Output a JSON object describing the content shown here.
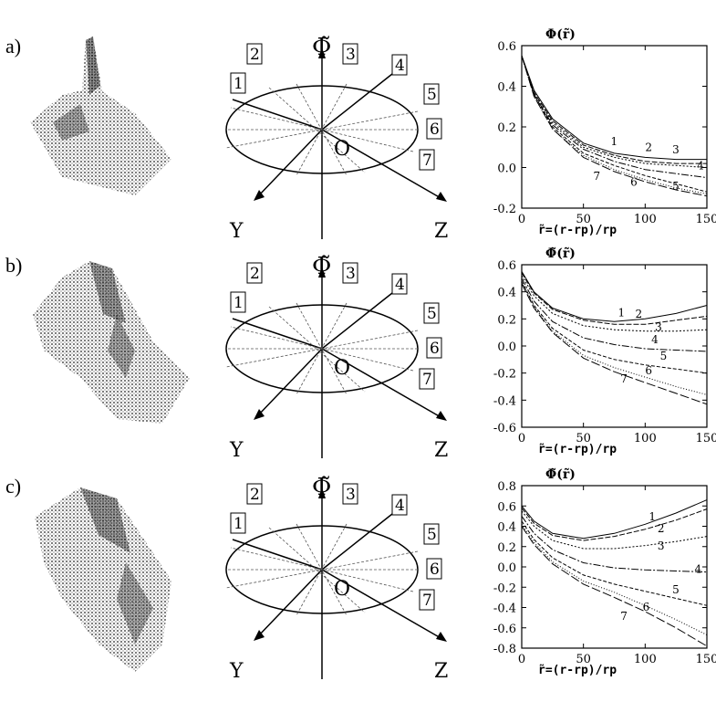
{
  "rows": [
    {
      "label": "a)",
      "diagram": {
        "phi_label": "Φ̃",
        "y_label": "Y",
        "z_label": "Z",
        "origin_label": "O",
        "rays": [
          "1",
          "2",
          "3",
          "4",
          "5",
          "6",
          "7"
        ]
      },
      "plot": {
        "ylabel": "Φ(r̃)",
        "xlabel": "r̃=(r-rp)/rp"
      }
    },
    {
      "label": "b)",
      "diagram": {
        "phi_label": "Φ̃",
        "y_label": "Y",
        "z_label": "Z",
        "origin_label": "O",
        "rays": [
          "1",
          "2",
          "3",
          "4",
          "5",
          "6",
          "7"
        ]
      },
      "plot": {
        "ylabel": "Φ̃(r̃)",
        "xlabel": "r̃=(r-rp)/rp"
      }
    },
    {
      "label": "c)",
      "diagram": {
        "phi_label": "Φ̃",
        "y_label": "Y",
        "z_label": "Z",
        "origin_label": "O",
        "rays": [
          "1",
          "2",
          "3",
          "4",
          "5",
          "6",
          "7"
        ]
      },
      "plot": {
        "ylabel": "Φ̃(r̃)",
        "xlabel": "r̃=(r-rp)/rp"
      }
    }
  ],
  "chart_data": [
    {
      "type": "line",
      "xlim": [
        0,
        150
      ],
      "ylim": [
        -0.2,
        0.6
      ],
      "xticks": [
        0,
        50,
        100,
        150
      ],
      "yticks": [
        -0.2,
        0.0,
        0.2,
        0.4,
        0.6
      ],
      "ytick_labels": [
        "-0.2",
        "0.0",
        "0.2",
        "0.4",
        "0.6"
      ],
      "xtick_labels": [
        "0",
        "50",
        "100",
        "150"
      ],
      "x": [
        0,
        10,
        25,
        50,
        75,
        100,
        125,
        150
      ],
      "series": [
        {
          "name": "1",
          "values": [
            0.55,
            0.38,
            0.24,
            0.12,
            0.07,
            0.05,
            0.04,
            0.04
          ]
        },
        {
          "name": "2",
          "values": [
            0.55,
            0.37,
            0.23,
            0.11,
            0.06,
            0.03,
            0.02,
            0.02
          ]
        },
        {
          "name": "3",
          "values": [
            0.55,
            0.37,
            0.22,
            0.1,
            0.05,
            0.02,
            0.01,
            0.0
          ]
        },
        {
          "name": "4",
          "values": [
            0.55,
            0.36,
            0.21,
            0.09,
            0.03,
            -0.01,
            -0.03,
            -0.05
          ]
        },
        {
          "name": "5",
          "values": [
            0.55,
            0.36,
            0.2,
            0.07,
            0.01,
            -0.04,
            -0.08,
            -0.12
          ]
        },
        {
          "name": "6",
          "values": [
            0.55,
            0.35,
            0.19,
            0.06,
            -0.01,
            -0.06,
            -0.1,
            -0.13
          ]
        },
        {
          "name": "7",
          "values": [
            0.55,
            0.35,
            0.19,
            0.05,
            -0.02,
            -0.07,
            -0.11,
            -0.14
          ]
        }
      ],
      "labels": [
        {
          "text": "1",
          "x": 72,
          "y": 0.11
        },
        {
          "text": "2",
          "x": 100,
          "y": 0.08
        },
        {
          "text": "3",
          "x": 122,
          "y": 0.07
        },
        {
          "text": "4",
          "x": 142,
          "y": -0.01
        },
        {
          "text": "5",
          "x": 122,
          "y": -0.11
        },
        {
          "text": "6",
          "x": 88,
          "y": -0.09
        },
        {
          "text": "7",
          "x": 58,
          "y": -0.06
        }
      ]
    },
    {
      "type": "line",
      "xlim": [
        0,
        150
      ],
      "ylim": [
        -0.6,
        0.6
      ],
      "xticks": [
        0,
        50,
        100,
        150
      ],
      "yticks": [
        -0.6,
        -0.4,
        -0.2,
        0.0,
        0.2,
        0.4,
        0.6
      ],
      "ytick_labels": [
        "-0.6",
        "-0.4",
        "-0.2",
        "0.0",
        "0.2",
        "0.4",
        "0.6"
      ],
      "xtick_labels": [
        "0",
        "50",
        "100",
        "150"
      ],
      "x": [
        0,
        10,
        25,
        50,
        75,
        100,
        125,
        150
      ],
      "series": [
        {
          "name": "1",
          "values": [
            0.55,
            0.4,
            0.28,
            0.2,
            0.18,
            0.2,
            0.24,
            0.3
          ]
        },
        {
          "name": "2",
          "values": [
            0.54,
            0.39,
            0.27,
            0.19,
            0.16,
            0.16,
            0.19,
            0.22
          ]
        },
        {
          "name": "3",
          "values": [
            0.52,
            0.37,
            0.24,
            0.15,
            0.12,
            0.11,
            0.11,
            0.12
          ]
        },
        {
          "name": "4",
          "values": [
            0.5,
            0.33,
            0.18,
            0.06,
            0.01,
            -0.02,
            -0.03,
            -0.04
          ]
        },
        {
          "name": "5",
          "values": [
            0.48,
            0.3,
            0.13,
            -0.03,
            -0.1,
            -0.14,
            -0.17,
            -0.2
          ]
        },
        {
          "name": "6",
          "values": [
            0.47,
            0.29,
            0.11,
            -0.07,
            -0.16,
            -0.23,
            -0.3,
            -0.36
          ]
        },
        {
          "name": "7",
          "values": [
            0.46,
            0.28,
            0.1,
            -0.09,
            -0.19,
            -0.27,
            -0.35,
            -0.43
          ]
        }
      ],
      "labels": [
        {
          "text": "1",
          "x": 78,
          "y": 0.22
        },
        {
          "text": "2",
          "x": 92,
          "y": 0.21
        },
        {
          "text": "3",
          "x": 108,
          "y": 0.11
        },
        {
          "text": "4",
          "x": 105,
          "y": 0.02
        },
        {
          "text": "5",
          "x": 112,
          "y": -0.1
        },
        {
          "text": "6",
          "x": 100,
          "y": -0.21
        },
        {
          "text": "7",
          "x": 80,
          "y": -0.27
        }
      ]
    },
    {
      "type": "line",
      "xlim": [
        0,
        150
      ],
      "ylim": [
        -0.8,
        0.8
      ],
      "xticks": [
        0,
        50,
        100,
        150
      ],
      "yticks": [
        -0.8,
        -0.6,
        -0.4,
        -0.2,
        0.0,
        0.2,
        0.4,
        0.6,
        0.8
      ],
      "ytick_labels": [
        "-0.8",
        "-0.6",
        "-0.4",
        "-0.2",
        "0.0",
        "0.2",
        "0.4",
        "0.6",
        "0.8"
      ],
      "xtick_labels": [
        "0",
        "50",
        "100",
        "150"
      ],
      "x": [
        0,
        10,
        25,
        50,
        75,
        100,
        125,
        150
      ],
      "series": [
        {
          "name": "1",
          "values": [
            0.6,
            0.45,
            0.33,
            0.28,
            0.33,
            0.42,
            0.53,
            0.66
          ]
        },
        {
          "name": "2",
          "values": [
            0.58,
            0.43,
            0.31,
            0.26,
            0.3,
            0.37,
            0.46,
            0.57
          ]
        },
        {
          "name": "3",
          "values": [
            0.55,
            0.4,
            0.26,
            0.18,
            0.18,
            0.21,
            0.25,
            0.3
          ]
        },
        {
          "name": "4",
          "values": [
            0.5,
            0.33,
            0.17,
            0.04,
            -0.01,
            -0.03,
            -0.04,
            -0.05
          ]
        },
        {
          "name": "5",
          "values": [
            0.45,
            0.27,
            0.09,
            -0.08,
            -0.17,
            -0.24,
            -0.31,
            -0.38
          ]
        },
        {
          "name": "6",
          "values": [
            0.42,
            0.24,
            0.05,
            -0.14,
            -0.25,
            -0.38,
            -0.52,
            -0.67
          ]
        },
        {
          "name": "7",
          "values": [
            0.4,
            0.22,
            0.03,
            -0.17,
            -0.3,
            -0.44,
            -0.6,
            -0.78
          ]
        }
      ],
      "labels": [
        {
          "text": "1",
          "x": 103,
          "y": 0.46
        },
        {
          "text": "2",
          "x": 110,
          "y": 0.34
        },
        {
          "text": "3",
          "x": 110,
          "y": 0.17
        },
        {
          "text": "4",
          "x": 140,
          "y": -0.06
        },
        {
          "text": "5",
          "x": 122,
          "y": -0.26
        },
        {
          "text": "6",
          "x": 98,
          "y": -0.43
        },
        {
          "text": "7",
          "x": 80,
          "y": -0.52
        }
      ]
    }
  ]
}
